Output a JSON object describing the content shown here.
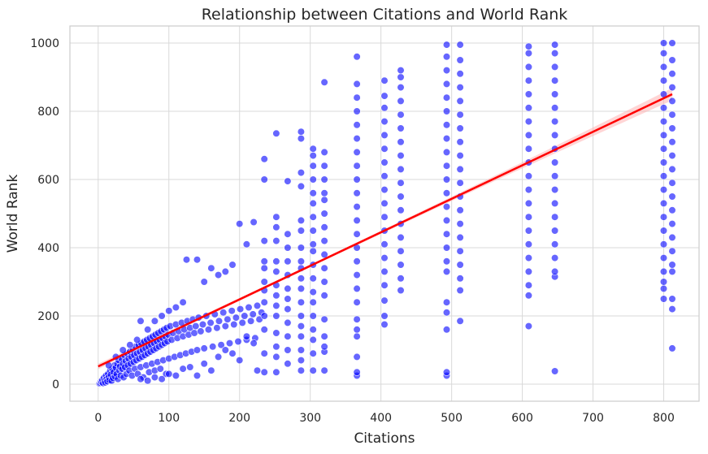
{
  "chart_data": {
    "type": "scatter",
    "title": "Relationship between Citations and World Rank",
    "xlabel": "Citations",
    "ylabel": "World Rank",
    "xlim": [
      -40,
      850
    ],
    "ylim": [
      -50,
      1050
    ],
    "xticks": [
      0,
      100,
      200,
      300,
      400,
      500,
      600,
      700,
      800
    ],
    "yticks": [
      0,
      200,
      400,
      600,
      800,
      1000
    ],
    "grid": true,
    "point_color": "#0000ff",
    "point_opacity": 0.6,
    "regression_line": {
      "x": [
        0,
        812
      ],
      "y": [
        52,
        850
      ],
      "color": "#ff0000",
      "ci_color": "#ffb3b3"
    },
    "columns": [
      {
        "x": 235,
        "y": [
          35,
          90,
          160,
          200,
          240,
          275,
          300,
          340,
          360,
          420,
          600,
          660
        ]
      },
      {
        "x": 252,
        "y": [
          35,
          80,
          110,
          150,
          200,
          230,
          260,
          290,
          330,
          360,
          420,
          460,
          490,
          735
        ]
      },
      {
        "x": 268,
        "y": [
          60,
          100,
          140,
          180,
          220,
          250,
          280,
          320,
          360,
          400,
          440,
          595
        ]
      },
      {
        "x": 287,
        "y": [
          40,
          70,
          100,
          140,
          170,
          200,
          240,
          280,
          310,
          340,
          360,
          400,
          450,
          480,
          580,
          620,
          720,
          740
        ]
      },
      {
        "x": 304,
        "y": [
          40,
          90,
          130,
          160,
          200,
          240,
          270,
          310,
          350,
          390,
          410,
          450,
          490,
          530,
          560,
          600,
          640,
          670,
          690
        ]
      },
      {
        "x": 320,
        "y": [
          40,
          95,
          110,
          140,
          190,
          260,
          300,
          340,
          380,
          420,
          460,
          500,
          540,
          560,
          600,
          640,
          680,
          885
        ]
      },
      {
        "x": 366,
        "y": [
          25,
          35,
          80,
          140,
          160,
          190,
          240,
          280,
          320,
          360,
          400,
          440,
          480,
          520,
          560,
          600,
          640,
          680,
          720,
          760,
          800,
          840,
          880,
          960
        ]
      },
      {
        "x": 405,
        "y": [
          175,
          200,
          245,
          290,
          330,
          370,
          410,
          450,
          490,
          530,
          570,
          610,
          650,
          690,
          730,
          770,
          810,
          845,
          890
        ]
      },
      {
        "x": 428,
        "y": [
          275,
          310,
          350,
          390,
          430,
          470,
          510,
          550,
          590,
          630,
          670,
          710,
          750,
          790,
          830,
          870,
          900,
          920
        ]
      },
      {
        "x": 493,
        "y": [
          25,
          35,
          160,
          210,
          240,
          330,
          360,
          400,
          440,
          480,
          520,
          560,
          600,
          640,
          680,
          720,
          760,
          800,
          840,
          880,
          920,
          960,
          995
        ]
      },
      {
        "x": 512,
        "y": [
          185,
          275,
          310,
          350,
          390,
          430,
          470,
          510,
          550,
          590,
          630,
          670,
          710,
          750,
          790,
          830,
          870,
          910,
          950,
          995
        ]
      },
      {
        "x": 609,
        "y": [
          170,
          260,
          290,
          330,
          370,
          410,
          450,
          490,
          530,
          570,
          610,
          650,
          690,
          730,
          770,
          810,
          850,
          890,
          930,
          970,
          990
        ]
      },
      {
        "x": 646,
        "y": [
          38,
          315,
          330,
          370,
          410,
          450,
          490,
          530,
          570,
          610,
          650,
          690,
          730,
          770,
          810,
          850,
          890,
          930,
          970,
          995
        ]
      },
      {
        "x": 800,
        "y": [
          250,
          280,
          300,
          330,
          370,
          410,
          450,
          490,
          530,
          570,
          610,
          650,
          690,
          730,
          770,
          810,
          850,
          890,
          930,
          970,
          1000
        ]
      },
      {
        "x": 812,
        "y": [
          105,
          220,
          250,
          330,
          350,
          390,
          430,
          470,
          510,
          550,
          590,
          630,
          670,
          710,
          750,
          790,
          830,
          870,
          910,
          950,
          1000
        ]
      }
    ],
    "cloud_points": [
      [
        2,
        2
      ],
      [
        3,
        4
      ],
      [
        4,
        8
      ],
      [
        5,
        6
      ],
      [
        6,
        12
      ],
      [
        7,
        3
      ],
      [
        8,
        18
      ],
      [
        9,
        10
      ],
      [
        10,
        5
      ],
      [
        11,
        25
      ],
      [
        12,
        15
      ],
      [
        13,
        8
      ],
      [
        14,
        30
      ],
      [
        15,
        20
      ],
      [
        16,
        12
      ],
      [
        17,
        40
      ],
      [
        18,
        28
      ],
      [
        19,
        10
      ],
      [
        20,
        45
      ],
      [
        21,
        18
      ],
      [
        22,
        35
      ],
      [
        23,
        55
      ],
      [
        24,
        22
      ],
      [
        25,
        48
      ],
      [
        26,
        30
      ],
      [
        27,
        60
      ],
      [
        28,
        15
      ],
      [
        29,
        70
      ],
      [
        30,
        40
      ],
      [
        31,
        52
      ],
      [
        32,
        25
      ],
      [
        33,
        75
      ],
      [
        34,
        45
      ],
      [
        35,
        60
      ],
      [
        36,
        20
      ],
      [
        37,
        85
      ],
      [
        38,
        50
      ],
      [
        39,
        68
      ],
      [
        40,
        30
      ],
      [
        41,
        90
      ],
      [
        42,
        55
      ],
      [
        43,
        75
      ],
      [
        44,
        40
      ],
      [
        45,
        95
      ],
      [
        46,
        60
      ],
      [
        47,
        80
      ],
      [
        48,
        25
      ],
      [
        49,
        100
      ],
      [
        50,
        65
      ],
      [
        51,
        85
      ],
      [
        52,
        45
      ],
      [
        53,
        110
      ],
      [
        54,
        70
      ],
      [
        55,
        90
      ],
      [
        56,
        30
      ],
      [
        57,
        115
      ],
      [
        58,
        75
      ],
      [
        59,
        95
      ],
      [
        60,
        50
      ],
      [
        61,
        120
      ],
      [
        62,
        80
      ],
      [
        63,
        100
      ],
      [
        64,
        20
      ],
      [
        65,
        125
      ],
      [
        66,
        85
      ],
      [
        67,
        105
      ],
      [
        68,
        55
      ],
      [
        69,
        130
      ],
      [
        70,
        90
      ],
      [
        71,
        110
      ],
      [
        72,
        35
      ],
      [
        73,
        135
      ],
      [
        74,
        95
      ],
      [
        75,
        115
      ],
      [
        76,
        60
      ],
      [
        77,
        140
      ],
      [
        78,
        100
      ],
      [
        79,
        120
      ],
      [
        80,
        40
      ],
      [
        81,
        145
      ],
      [
        82,
        105
      ],
      [
        83,
        125
      ],
      [
        84,
        65
      ],
      [
        85,
        150
      ],
      [
        86,
        110
      ],
      [
        87,
        130
      ],
      [
        88,
        45
      ],
      [
        89,
        155
      ],
      [
        90,
        115
      ],
      [
        91,
        135
      ],
      [
        92,
        70
      ],
      [
        93,
        160
      ],
      [
        94,
        120
      ],
      [
        95,
        140
      ],
      [
        96,
        30
      ],
      [
        97,
        165
      ],
      [
        98,
        125
      ],
      [
        99,
        145
      ],
      [
        100,
        75
      ],
      [
        102,
        170
      ],
      [
        104,
        130
      ],
      [
        106,
        150
      ],
      [
        108,
        80
      ],
      [
        110,
        175
      ],
      [
        112,
        135
      ],
      [
        114,
        155
      ],
      [
        116,
        85
      ],
      [
        118,
        180
      ],
      [
        120,
        140
      ],
      [
        122,
        160
      ],
      [
        124,
        90
      ],
      [
        126,
        185
      ],
      [
        128,
        145
      ],
      [
        130,
        165
      ],
      [
        132,
        95
      ],
      [
        134,
        190
      ],
      [
        136,
        150
      ],
      [
        138,
        170
      ],
      [
        140,
        100
      ],
      [
        142,
        195
      ],
      [
        145,
        155
      ],
      [
        148,
        175
      ],
      [
        150,
        105
      ],
      [
        153,
        200
      ],
      [
        156,
        160
      ],
      [
        159,
        180
      ],
      [
        162,
        110
      ],
      [
        165,
        205
      ],
      [
        168,
        165
      ],
      [
        171,
        185
      ],
      [
        174,
        115
      ],
      [
        177,
        210
      ],
      [
        180,
        170
      ],
      [
        183,
        190
      ],
      [
        186,
        120
      ],
      [
        189,
        215
      ],
      [
        192,
        175
      ],
      [
        195,
        195
      ],
      [
        198,
        125
      ],
      [
        201,
        220
      ],
      [
        204,
        180
      ],
      [
        207,
        200
      ],
      [
        210,
        130
      ],
      [
        213,
        225
      ],
      [
        216,
        185
      ],
      [
        219,
        205
      ],
      [
        222,
        135
      ],
      [
        225,
        230
      ],
      [
        228,
        190
      ],
      [
        231,
        210
      ],
      [
        15,
        55
      ],
      [
        25,
        80
      ],
      [
        35,
        100
      ],
      [
        45,
        115
      ],
      [
        55,
        130
      ],
      [
        60,
        185
      ],
      [
        70,
        160
      ],
      [
        80,
        185
      ],
      [
        90,
        200
      ],
      [
        100,
        215
      ],
      [
        110,
        225
      ],
      [
        120,
        240
      ],
      [
        125,
        365
      ],
      [
        140,
        365
      ],
      [
        150,
        300
      ],
      [
        160,
        340
      ],
      [
        170,
        320
      ],
      [
        180,
        330
      ],
      [
        190,
        350
      ],
      [
        200,
        470
      ],
      [
        210,
        410
      ],
      [
        220,
        475
      ],
      [
        130,
        50
      ],
      [
        140,
        25
      ],
      [
        150,
        60
      ],
      [
        160,
        40
      ],
      [
        170,
        80
      ],
      [
        180,
        100
      ],
      [
        190,
        90
      ],
      [
        200,
        70
      ],
      [
        210,
        140
      ],
      [
        220,
        120
      ],
      [
        225,
        40
      ],
      [
        80,
        20
      ],
      [
        90,
        15
      ],
      [
        100,
        30
      ],
      [
        110,
        25
      ],
      [
        120,
        45
      ],
      [
        60,
        15
      ],
      [
        70,
        10
      ]
    ]
  }
}
